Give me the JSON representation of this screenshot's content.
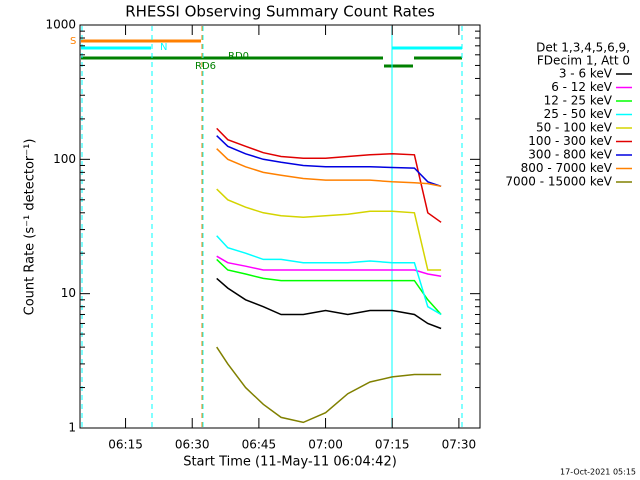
{
  "chart_data": {
    "type": "line",
    "title": "RHESSI Observing Summary Count Rates",
    "x_label": "Start Time (11-May-11 06:04:42)",
    "y_label": "Count Rate (s⁻¹ detector⁻¹)",
    "footer": "17-Oct-2021 05:15",
    "legend_title": [
      "Det 1,3,4,5,6,9,",
      "FDecim 1, Att 0"
    ],
    "log_y": true,
    "xlim": [
      4.75,
      94.75
    ],
    "xticks": [
      {
        "value": 15,
        "label": "06:15"
      },
      {
        "value": 30,
        "label": "06:30"
      },
      {
        "value": 45,
        "label": "06:45"
      },
      {
        "value": 60,
        "label": "07:00"
      },
      {
        "value": 75,
        "label": "07:15"
      },
      {
        "value": 90,
        "label": "07:30"
      }
    ],
    "ylim": [
      1,
      1000
    ],
    "yticks": [
      1,
      10,
      100,
      1000
    ],
    "yticks_minor": [
      2,
      3,
      4,
      5,
      6,
      7,
      8,
      9,
      20,
      30,
      40,
      50,
      60,
      70,
      80,
      90,
      200,
      300,
      400,
      500,
      600,
      700,
      800,
      900
    ],
    "annotations": [
      {
        "text": "S",
        "color": "#ff8000"
      },
      {
        "text": "N",
        "color": "#00ffff"
      },
      {
        "text": "RD0",
        "color": "#008000"
      },
      {
        "text": "RD6",
        "color": "#008000"
      }
    ],
    "x": [
      35.5,
      38,
      42,
      46,
      50,
      55,
      60,
      65,
      70,
      75,
      80,
      83,
      86
    ],
    "series": [
      {
        "name": "3 - 6 keV",
        "color": "#000000",
        "values": [
          13,
          11,
          9,
          8,
          7,
          7,
          7.5,
          7,
          7.5,
          7.5,
          7,
          6,
          5.5
        ]
      },
      {
        "name": "6 - 12 keV",
        "color": "#ff00ff",
        "values": [
          19,
          17,
          16,
          15,
          15,
          15,
          15,
          15,
          15,
          15,
          15,
          14,
          13.5
        ]
      },
      {
        "name": "12 - 25 keV",
        "color": "#00ff00",
        "values": [
          18,
          15,
          14,
          13,
          12.5,
          12.5,
          12.5,
          12.5,
          12.5,
          12.5,
          12.5,
          9,
          7
        ]
      },
      {
        "name": "25 - 50 keV",
        "color": "#00ffff",
        "values": [
          27,
          22,
          20,
          18,
          18,
          17,
          17,
          17,
          17.5,
          17,
          17,
          8,
          7
        ]
      },
      {
        "name": "50 - 100 keV",
        "color": "#d4d400",
        "values": [
          60,
          50,
          44,
          40,
          38,
          37,
          38,
          39,
          41,
          41,
          40,
          15,
          15
        ]
      },
      {
        "name": "100 - 300 keV",
        "color": "#e00000",
        "values": [
          170,
          140,
          125,
          112,
          105,
          102,
          102,
          105,
          108,
          110,
          108,
          40,
          34
        ]
      },
      {
        "name": "300 - 800 keV",
        "color": "#0000e0",
        "values": [
          150,
          125,
          110,
          100,
          95,
          90,
          88,
          88,
          88,
          87,
          86,
          68,
          63
        ]
      },
      {
        "name": "800 - 7000 keV",
        "color": "#ff8000",
        "values": [
          120,
          100,
          88,
          80,
          76,
          72,
          70,
          70,
          70,
          68,
          67,
          66,
          63
        ]
      },
      {
        "name": "7000 - 15000 keV",
        "color": "#808000",
        "values": [
          4,
          3,
          2,
          1.5,
          1.2,
          1.1,
          1.3,
          1.8,
          2.2,
          2.4,
          2.5,
          2.5,
          2.5
        ]
      }
    ]
  }
}
